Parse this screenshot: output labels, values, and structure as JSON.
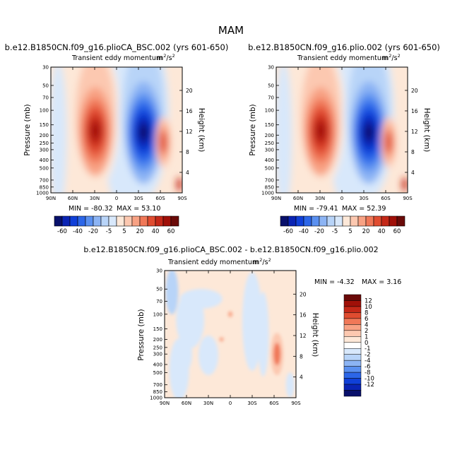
{
  "figure": {
    "title": "MAM"
  },
  "colors": {
    "scale12": [
      "#08106b",
      "#0a24b4",
      "#1040d8",
      "#2c66e8",
      "#5a90f0",
      "#8cb4f4",
      "#b8d4f8",
      "#d8e8fb",
      "#fde8d8",
      "#fcc8b0",
      "#f8a284",
      "#f07858",
      "#e04c30",
      "#c42818",
      "#a01008",
      "#6a0a08"
    ],
    "scale13": [
      "#08106b",
      "#0a24b4",
      "#1040d8",
      "#2c66e8",
      "#5a90f0",
      "#8cb4f4",
      "#b8d4f8",
      "#d8e8fb",
      "#ffffff",
      "#fde8d8",
      "#fcc8b0",
      "#f8a284",
      "#f07858",
      "#e04c30",
      "#c42818",
      "#a01008",
      "#6a0a08"
    ]
  },
  "chart_data": [
    {
      "type": "heatmap",
      "id": "left",
      "title": "b.e12.B1850CN.f09_g16.plioCA_BSC.002 (yrs 601-650)",
      "variable": "Transient eddy momentum",
      "units_prefix": "m",
      "units_exp": "2",
      "units_mid": "/s",
      "units_exp2": "2",
      "xlabel": "",
      "ylabel": "Pressure (mb)",
      "ylabel_right": "Height (km)",
      "x_ticks": [
        "90N",
        "60N",
        "30N",
        "0",
        "30S",
        "60S",
        "90S"
      ],
      "x_values": [
        90,
        60,
        30,
        0,
        -30,
        -60,
        -90
      ],
      "p_ticks": [
        "30",
        "50",
        "70",
        "100",
        "150",
        "200",
        "250",
        "300",
        "400",
        "500",
        "700",
        "850",
        "1000"
      ],
      "p_values": [
        30,
        50,
        70,
        100,
        150,
        200,
        250,
        300,
        400,
        500,
        700,
        850,
        1000
      ],
      "z_ticks": [
        "20",
        "16",
        "12",
        "8",
        "4"
      ],
      "z_values": [
        20,
        16,
        12,
        8,
        4
      ],
      "min_text": "MIN = -80.32",
      "max_text": "MAX =  53.10",
      "field": {
        "pos_lat": 29,
        "pos_max": 53.1,
        "neg_lat": -37,
        "neg_min": -80.32,
        "pos2_lat": -64,
        "pos2_max": 18
      },
      "colorbar": {
        "levels": [
          "-60",
          "-40",
          "-20",
          "-5",
          "5",
          "20",
          "40",
          "60"
        ],
        "all_levels": [
          -60,
          -50,
          -40,
          -30,
          -20,
          -10,
          -5,
          0,
          5,
          10,
          20,
          30,
          40,
          50,
          60
        ]
      }
    },
    {
      "type": "heatmap",
      "id": "right",
      "title": "b.e12.B1850CN.f09_g16.plio.002 (yrs 601-650)",
      "variable": "Transient eddy momentum",
      "units_prefix": "m",
      "units_exp": "2",
      "units_mid": "/s",
      "units_exp2": "2",
      "xlabel": "",
      "ylabel": "Pressure (mb)",
      "ylabel_right": "Height (km)",
      "x_ticks": [
        "90N",
        "60N",
        "30N",
        "0",
        "30S",
        "60S",
        "90S"
      ],
      "x_values": [
        90,
        60,
        30,
        0,
        -30,
        -60,
        -90
      ],
      "p_ticks": [
        "30",
        "50",
        "70",
        "100",
        "150",
        "200",
        "250",
        "300",
        "400",
        "500",
        "700",
        "850",
        "1000"
      ],
      "p_values": [
        30,
        50,
        70,
        100,
        150,
        200,
        250,
        300,
        400,
        500,
        700,
        850,
        1000
      ],
      "z_ticks": [
        "20",
        "16",
        "12",
        "8",
        "4"
      ],
      "z_values": [
        20,
        16,
        12,
        8,
        4
      ],
      "min_text": "MIN = -79.41",
      "max_text": "MAX =  52.39",
      "field": {
        "pos_lat": 29,
        "pos_max": 52.39,
        "neg_lat": -37,
        "neg_min": -79.41,
        "pos2_lat": -64,
        "pos2_max": 22
      },
      "colorbar": {
        "levels": [
          "-60",
          "-40",
          "-20",
          "-5",
          "5",
          "20",
          "40",
          "60"
        ],
        "all_levels": [
          -60,
          -50,
          -40,
          -30,
          -20,
          -10,
          -5,
          0,
          5,
          10,
          20,
          30,
          40,
          50,
          60
        ]
      }
    },
    {
      "type": "heatmap",
      "id": "diff",
      "title": "b.e12.B1850CN.f09_g16.plioCA_BSC.002 - b.e12.B1850CN.f09_g16.plio.002",
      "variable": "Transient eddy momentum",
      "units_prefix": "m",
      "units_exp": "2",
      "units_mid": "/s",
      "units_exp2": "2",
      "xlabel": "",
      "ylabel": "Pressure (mb)",
      "ylabel_right": "Height (km)",
      "x_ticks": [
        "90N",
        "60N",
        "30N",
        "0",
        "30S",
        "60S",
        "90S"
      ],
      "x_values": [
        90,
        60,
        30,
        0,
        -30,
        -60,
        -90
      ],
      "p_ticks": [
        "30",
        "50",
        "70",
        "100",
        "150",
        "200",
        "250",
        "300",
        "400",
        "500",
        "700",
        "850",
        "1000"
      ],
      "p_values": [
        30,
        50,
        70,
        100,
        150,
        200,
        250,
        300,
        400,
        500,
        700,
        850,
        1000
      ],
      "z_ticks": [
        "20",
        "16",
        "12",
        "8",
        "4"
      ],
      "z_values": [
        20,
        16,
        12,
        8,
        4
      ],
      "min_text": "MIN =  -4.32",
      "max_text": "MAX =   3.16",
      "colorbar": {
        "levels": [
          "12",
          "10",
          "8",
          "6",
          "4",
          "2",
          "1",
          "0",
          "-1",
          "-2",
          "-4",
          "-6",
          "-8",
          "-10",
          "-12"
        ],
        "all_levels": [
          12,
          10,
          8,
          6,
          4,
          2,
          1,
          0,
          -1,
          -2,
          -4,
          -6,
          -8,
          -10,
          -12
        ]
      }
    }
  ]
}
